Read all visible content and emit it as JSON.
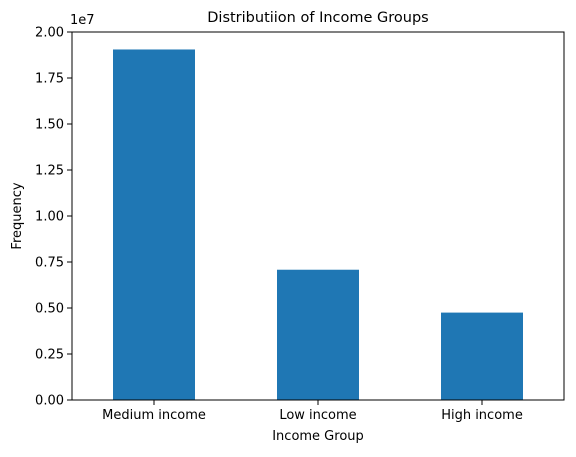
{
  "chart_data": {
    "type": "bar",
    "title": "Distributiion of Income Groups",
    "xlabel": "Income Group",
    "ylabel": "Frequency",
    "categories": [
      "Medium income",
      "Low income",
      "High income"
    ],
    "values": [
      19050000,
      7080000,
      4750000
    ],
    "ylim": [
      0,
      20000000
    ],
    "y_ticks": [
      0,
      2500000,
      5000000,
      7500000,
      10000000,
      12500000,
      15000000,
      17500000,
      20000000
    ],
    "y_tick_labels": [
      "0.00",
      "0.25",
      "0.50",
      "0.75",
      "1.00",
      "1.25",
      "1.50",
      "1.75",
      "2.00"
    ],
    "y_offset_label": "1e7",
    "bar_color": "#1f77b4",
    "grid": false,
    "legend": "none"
  }
}
